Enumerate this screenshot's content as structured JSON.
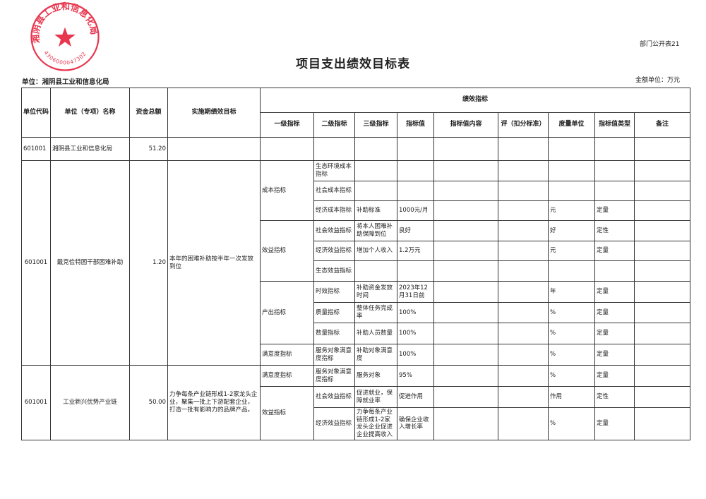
{
  "form_number": "部门公开表21",
  "title": "项目支出绩效目标表",
  "unit_label": "单位：湘阴县工业和信息化局",
  "money_unit": "金额单位：万元",
  "stamp": {
    "text": "湘阴县工业和信息化局",
    "code": "4306000047302",
    "color": "#e8364f"
  },
  "headers": {
    "code": "单位代码",
    "name": "单位（专项）名称",
    "amount": "资金总额",
    "goal": "实施期绩效目标",
    "perf": "绩效指标",
    "l1": "一级指标",
    "l2": "二级指标",
    "l3": "三级指标",
    "value": "指标值",
    "content": "指标值内容",
    "score": "评（扣分标准）",
    "measure": "度量单位",
    "type": "指标值类型",
    "note": "备注"
  },
  "summary": {
    "code": "601001",
    "name": "湘阴县工业和信息化局",
    "amount": "51.20"
  },
  "projects": [
    {
      "code": "601001",
      "name": "戴克俭特困干部困难补助",
      "amount": "1.20",
      "goal": "本年的困难补助按半年一次发放到位",
      "groups": [
        {
          "l1": "成本指标",
          "rows": [
            {
              "l2": "生态环境成本指标",
              "l3": "",
              "value": "",
              "content": "",
              "score": "",
              "measure": "",
              "type": "",
              "note": ""
            },
            {
              "l2": "社会成本指标",
              "l3": "",
              "value": "",
              "content": "",
              "score": "",
              "measure": "",
              "type": "",
              "note": ""
            },
            {
              "l2": "经济成本指标",
              "l3": "补助标准",
              "value": "1000元/月",
              "content": "",
              "score": "",
              "measure": "元",
              "type": "定量",
              "note": ""
            }
          ]
        },
        {
          "l1": "效益指标",
          "rows": [
            {
              "l2": "社会效益指标",
              "l3": "将本人困难补助保障到位",
              "value": "良好",
              "content": "",
              "score": "",
              "measure": "好",
              "type": "定性",
              "note": ""
            },
            {
              "l2": "经济效益指标",
              "l3": "增加个人收入",
              "value": "1.2万元",
              "content": "",
              "score": "",
              "measure": "元",
              "type": "定量",
              "note": ""
            },
            {
              "l2": "生态效益指标",
              "l3": "",
              "value": "",
              "content": "",
              "score": "",
              "measure": "",
              "type": "",
              "note": ""
            }
          ]
        },
        {
          "l1": "产出指标",
          "rows": [
            {
              "l2": "时效指标",
              "l3": "补助资金发放时间",
              "value": "2023年12月31日前",
              "content": "",
              "score": "",
              "measure": "年",
              "type": "定量",
              "note": ""
            },
            {
              "l2": "质量指标",
              "l3": "整体任务完成率",
              "value": "100%",
              "content": "",
              "score": "",
              "measure": "%",
              "type": "定量",
              "note": ""
            },
            {
              "l2": "数量指标",
              "l3": "补助人员数量",
              "value": "100%",
              "content": "",
              "score": "",
              "measure": "%",
              "type": "定量",
              "note": ""
            }
          ]
        },
        {
          "l1": "满意度指标",
          "rows": [
            {
              "l2": "服务对象满意度指标",
              "l3": "补助对象满意度",
              "value": "100%",
              "content": "",
              "score": "",
              "measure": "%",
              "type": "定量",
              "note": ""
            }
          ]
        }
      ]
    },
    {
      "code": "601001",
      "name": "工业新兴优势产业链",
      "amount": "50.00",
      "goal": "力争每条产业链形成1-2家龙头企业，聚集一批上下游配套企业，打造一批有影响力的品牌产品。",
      "groups": [
        {
          "l1": "满意度指标",
          "rows": [
            {
              "l2": "服务对象满意度指标",
              "l3": "服务对象",
              "value": "95%",
              "content": "",
              "score": "",
              "measure": "%",
              "type": "定量",
              "note": ""
            }
          ]
        },
        {
          "l1": "效益指标",
          "rows": [
            {
              "l2": "社会效益指标",
              "l3": "促进就业，保障就业率",
              "value": "促进作用",
              "content": "",
              "score": "",
              "measure": "作用",
              "type": "定性",
              "note": ""
            },
            {
              "l2": "经济效益指标",
              "l3": "力争每条产业链形成1-2家龙头企业促进企业提高收入",
              "value": "确保企业收入增长率",
              "content": "",
              "score": "",
              "measure": "%",
              "type": "定量",
              "note": ""
            }
          ]
        }
      ]
    }
  ]
}
